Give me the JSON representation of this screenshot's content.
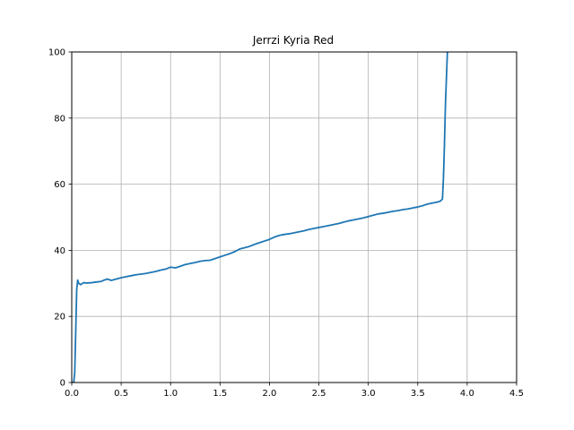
{
  "chart_data": {
    "type": "line",
    "title": "Jerrzi Kyria Red",
    "xlabel": "",
    "ylabel": "",
    "xlim": [
      0,
      4.5
    ],
    "ylim": [
      0,
      100
    ],
    "xticks": [
      0.0,
      0.5,
      1.0,
      1.5,
      2.0,
      2.5,
      3.0,
      3.5,
      4.0,
      4.5
    ],
    "xtick_labels": [
      "0.0",
      "0.5",
      "1.0",
      "1.5",
      "2.0",
      "2.5",
      "3.0",
      "3.5",
      "4.0",
      "4.5"
    ],
    "yticks": [
      0,
      20,
      40,
      60,
      80,
      100
    ],
    "ytick_labels": [
      "0",
      "20",
      "40",
      "60",
      "80",
      "100"
    ],
    "grid": true,
    "series": [
      {
        "color": "#1f77b4",
        "x": [
          0.0,
          0.02,
          0.03,
          0.04,
          0.05,
          0.06,
          0.07,
          0.09,
          0.12,
          0.15,
          0.2,
          0.25,
          0.3,
          0.33,
          0.36,
          0.4,
          0.45,
          0.5,
          0.55,
          0.6,
          0.65,
          0.7,
          0.75,
          0.8,
          0.85,
          0.9,
          0.95,
          1.0,
          1.05,
          1.1,
          1.15,
          1.2,
          1.25,
          1.3,
          1.35,
          1.4,
          1.45,
          1.5,
          1.55,
          1.6,
          1.65,
          1.7,
          1.75,
          1.8,
          1.85,
          1.9,
          1.95,
          2.0,
          2.05,
          2.1,
          2.15,
          2.2,
          2.25,
          2.3,
          2.35,
          2.4,
          2.45,
          2.5,
          2.55,
          2.6,
          2.65,
          2.7,
          2.75,
          2.8,
          2.85,
          2.9,
          2.95,
          3.0,
          3.05,
          3.1,
          3.15,
          3.2,
          3.25,
          3.3,
          3.35,
          3.4,
          3.45,
          3.5,
          3.55,
          3.6,
          3.65,
          3.7,
          3.73,
          3.75,
          3.76,
          3.77,
          3.78,
          3.79,
          3.8,
          3.81
        ],
        "y": [
          0,
          0,
          3,
          15,
          28,
          31,
          30,
          29.6,
          30.2,
          30.1,
          30.2,
          30.4,
          30.6,
          31.0,
          31.3,
          30.9,
          31.3,
          31.7,
          32.0,
          32.3,
          32.6,
          32.8,
          33.0,
          33.3,
          33.6,
          34.0,
          34.3,
          34.9,
          34.7,
          35.2,
          35.7,
          36.0,
          36.3,
          36.7,
          36.9,
          37.0,
          37.5,
          38.0,
          38.5,
          39.0,
          39.6,
          40.4,
          40.8,
          41.2,
          41.8,
          42.3,
          42.8,
          43.3,
          44.0,
          44.5,
          44.8,
          45.0,
          45.3,
          45.6,
          45.9,
          46.3,
          46.6,
          46.9,
          47.2,
          47.5,
          47.8,
          48.1,
          48.5,
          48.9,
          49.2,
          49.5,
          49.8,
          50.2,
          50.6,
          51.0,
          51.2,
          51.5,
          51.8,
          52.0,
          52.3,
          52.5,
          52.8,
          53.1,
          53.5,
          54.0,
          54.3,
          54.6,
          54.9,
          55.5,
          62,
          72,
          84,
          92,
          100,
          102
        ]
      }
    ]
  }
}
